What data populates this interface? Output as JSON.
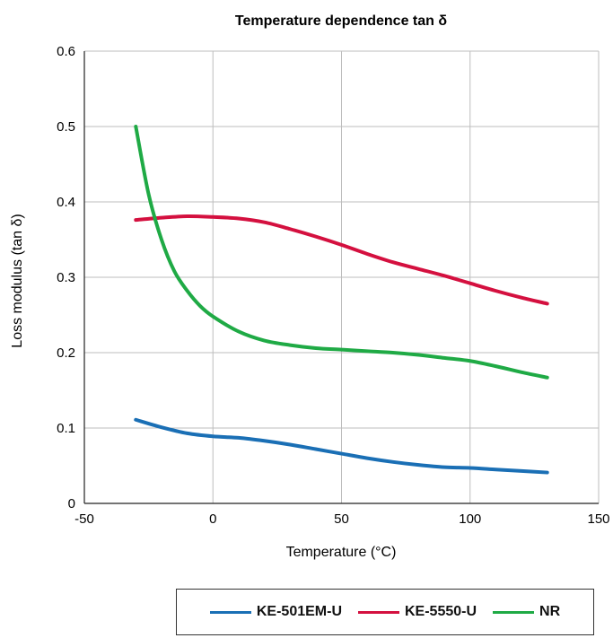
{
  "chart_data": {
    "type": "line",
    "title": "Temperature dependence tan δ",
    "xlabel": "Temperature (°C)",
    "ylabel": "Loss modulus (tan δ)",
    "xlim": [
      -50,
      150
    ],
    "ylim": [
      0,
      0.6
    ],
    "xticks": [
      -50,
      0,
      50,
      100,
      150
    ],
    "yticks": [
      0,
      0.1,
      0.2,
      0.3,
      0.4,
      0.5,
      0.6
    ],
    "ytick_labels": [
      "0",
      "0.1",
      "0.2",
      "0.3",
      "0.4",
      "0.5",
      "0.6"
    ],
    "grid": true,
    "legend_position": "bottom-right",
    "series": [
      {
        "name": "KE-501EM-U",
        "color": "#1a6fb5",
        "x": [
          -30,
          -20,
          -10,
          0,
          10,
          20,
          30,
          40,
          50,
          60,
          70,
          80,
          90,
          100,
          110,
          120,
          130
        ],
        "y": [
          0.111,
          0.101,
          0.093,
          0.089,
          0.087,
          0.083,
          0.078,
          0.072,
          0.066,
          0.06,
          0.055,
          0.051,
          0.048,
          0.047,
          0.045,
          0.043,
          0.041
        ]
      },
      {
        "name": "KE-5550-U",
        "color": "#d4103f",
        "x": [
          -30,
          -20,
          -10,
          0,
          10,
          20,
          30,
          40,
          50,
          60,
          70,
          80,
          90,
          100,
          110,
          120,
          130
        ],
        "y": [
          0.376,
          0.379,
          0.381,
          0.38,
          0.378,
          0.373,
          0.364,
          0.354,
          0.343,
          0.331,
          0.32,
          0.311,
          0.302,
          0.292,
          0.282,
          0.273,
          0.265
        ]
      },
      {
        "name": "NR",
        "color": "#1faa45",
        "x": [
          -30,
          -25,
          -20,
          -15,
          -10,
          -5,
          0,
          10,
          20,
          30,
          40,
          50,
          60,
          70,
          80,
          90,
          100,
          110,
          120,
          130
        ],
        "y": [
          0.5,
          0.41,
          0.35,
          0.308,
          0.282,
          0.262,
          0.248,
          0.228,
          0.216,
          0.21,
          0.206,
          0.204,
          0.202,
          0.2,
          0.197,
          0.193,
          0.189,
          0.182,
          0.174,
          0.167
        ]
      }
    ]
  }
}
